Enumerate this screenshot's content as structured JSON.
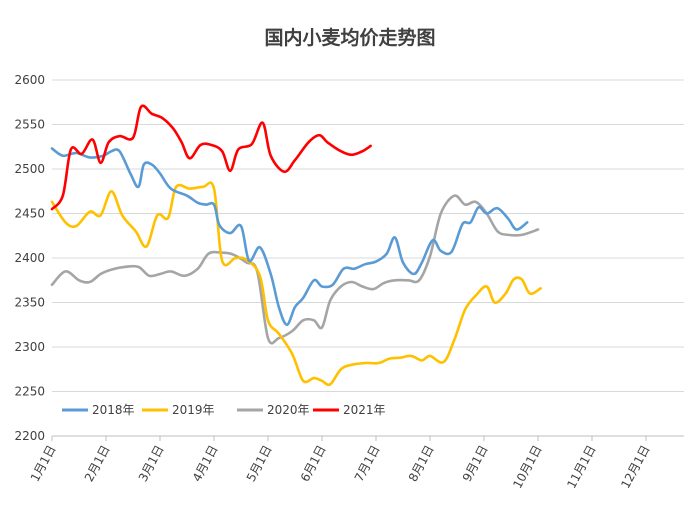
{
  "chart_data": {
    "type": "line",
    "title": "国内小麦均价走势图",
    "xlabel": "",
    "ylabel": "",
    "ylim": [
      2200,
      2600
    ],
    "yticks": [
      2200,
      2250,
      2300,
      2350,
      2400,
      2450,
      2500,
      2550,
      2600
    ],
    "x_range": [
      0,
      12
    ],
    "x_ticks": [
      {
        "label": "1月1日",
        "x": 0
      },
      {
        "label": "2月1日",
        "x": 1
      },
      {
        "label": "3月1日",
        "x": 2
      },
      {
        "label": "4月1日",
        "x": 3
      },
      {
        "label": "5月1日",
        "x": 4
      },
      {
        "label": "6月1日",
        "x": 5
      },
      {
        "label": "7月1日",
        "x": 6
      },
      {
        "label": "8月1日",
        "x": 7
      },
      {
        "label": "9月1日",
        "x": 8
      },
      {
        "label": "10月1日",
        "x": 9
      },
      {
        "label": "11月1日",
        "x": 10
      },
      {
        "label": "12月1日",
        "x": 11
      }
    ],
    "grid": "horizontal",
    "legend_position": "bottom-left",
    "series": [
      {
        "name": "2018年",
        "color": "#5b9bd5",
        "points": [
          [
            0,
            2523
          ],
          [
            0.2,
            2515
          ],
          [
            0.45,
            2518
          ],
          [
            0.7,
            2513
          ],
          [
            0.95,
            2515
          ],
          [
            1.1,
            2520
          ],
          [
            1.25,
            2520
          ],
          [
            1.45,
            2495
          ],
          [
            1.6,
            2480
          ],
          [
            1.7,
            2505
          ],
          [
            1.85,
            2505
          ],
          [
            2.0,
            2495
          ],
          [
            2.2,
            2478
          ],
          [
            2.5,
            2470
          ],
          [
            2.7,
            2462
          ],
          [
            2.85,
            2460
          ],
          [
            3.0,
            2460
          ],
          [
            3.1,
            2437
          ],
          [
            3.3,
            2428
          ],
          [
            3.5,
            2436
          ],
          [
            3.65,
            2397
          ],
          [
            3.85,
            2412
          ],
          [
            4.05,
            2382
          ],
          [
            4.2,
            2345
          ],
          [
            4.35,
            2325
          ],
          [
            4.5,
            2345
          ],
          [
            4.65,
            2355
          ],
          [
            4.85,
            2375
          ],
          [
            5.0,
            2368
          ],
          [
            5.2,
            2370
          ],
          [
            5.4,
            2388
          ],
          [
            5.6,
            2388
          ],
          [
            5.8,
            2393
          ],
          [
            6.0,
            2396
          ],
          [
            6.2,
            2405
          ],
          [
            6.35,
            2423
          ],
          [
            6.5,
            2395
          ],
          [
            6.7,
            2382
          ],
          [
            6.85,
            2395
          ],
          [
            7.05,
            2420
          ],
          [
            7.2,
            2408
          ],
          [
            7.4,
            2407
          ],
          [
            7.6,
            2438
          ],
          [
            7.75,
            2440
          ],
          [
            7.9,
            2457
          ],
          [
            8.05,
            2450
          ],
          [
            8.25,
            2456
          ],
          [
            8.45,
            2444
          ],
          [
            8.6,
            2432
          ],
          [
            8.8,
            2440
          ]
        ]
      },
      {
        "name": "2019年",
        "color": "#ffc000",
        "points": [
          [
            0,
            2463
          ],
          [
            0.25,
            2440
          ],
          [
            0.45,
            2436
          ],
          [
            0.7,
            2452
          ],
          [
            0.9,
            2448
          ],
          [
            1.1,
            2475
          ],
          [
            1.3,
            2448
          ],
          [
            1.55,
            2430
          ],
          [
            1.75,
            2413
          ],
          [
            1.95,
            2448
          ],
          [
            2.15,
            2445
          ],
          [
            2.3,
            2480
          ],
          [
            2.55,
            2478
          ],
          [
            2.8,
            2480
          ],
          [
            3.0,
            2478
          ],
          [
            3.15,
            2397
          ],
          [
            3.4,
            2400
          ],
          [
            3.6,
            2398
          ],
          [
            3.85,
            2380
          ],
          [
            4.0,
            2330
          ],
          [
            4.2,
            2315
          ],
          [
            4.45,
            2292
          ],
          [
            4.65,
            2262
          ],
          [
            4.85,
            2265
          ],
          [
            5.0,
            2262
          ],
          [
            5.15,
            2258
          ],
          [
            5.35,
            2275
          ],
          [
            5.55,
            2280
          ],
          [
            5.8,
            2282
          ],
          [
            6.05,
            2282
          ],
          [
            6.25,
            2287
          ],
          [
            6.45,
            2288
          ],
          [
            6.65,
            2290
          ],
          [
            6.85,
            2285
          ],
          [
            7.0,
            2290
          ],
          [
            7.25,
            2283
          ],
          [
            7.45,
            2308
          ],
          [
            7.65,
            2342
          ],
          [
            7.85,
            2358
          ],
          [
            8.05,
            2368
          ],
          [
            8.2,
            2350
          ],
          [
            8.4,
            2360
          ],
          [
            8.55,
            2376
          ],
          [
            8.7,
            2376
          ],
          [
            8.85,
            2360
          ],
          [
            9.05,
            2366
          ]
        ]
      },
      {
        "name": "2020年",
        "color": "#a5a5a5",
        "points": [
          [
            0,
            2370
          ],
          [
            0.25,
            2385
          ],
          [
            0.5,
            2375
          ],
          [
            0.7,
            2373
          ],
          [
            0.9,
            2382
          ],
          [
            1.1,
            2387
          ],
          [
            1.35,
            2390
          ],
          [
            1.6,
            2390
          ],
          [
            1.8,
            2380
          ],
          [
            2.0,
            2382
          ],
          [
            2.2,
            2385
          ],
          [
            2.45,
            2380
          ],
          [
            2.7,
            2388
          ],
          [
            2.9,
            2405
          ],
          [
            3.15,
            2406
          ],
          [
            3.35,
            2404
          ],
          [
            3.6,
            2395
          ],
          [
            3.8,
            2385
          ],
          [
            4.0,
            2310
          ],
          [
            4.2,
            2310
          ],
          [
            4.45,
            2318
          ],
          [
            4.65,
            2330
          ],
          [
            4.85,
            2330
          ],
          [
            5.0,
            2322
          ],
          [
            5.15,
            2352
          ],
          [
            5.35,
            2368
          ],
          [
            5.55,
            2373
          ],
          [
            5.75,
            2368
          ],
          [
            5.95,
            2365
          ],
          [
            6.15,
            2372
          ],
          [
            6.35,
            2375
          ],
          [
            6.6,
            2375
          ],
          [
            6.8,
            2375
          ],
          [
            7.0,
            2402
          ],
          [
            7.2,
            2450
          ],
          [
            7.45,
            2470
          ],
          [
            7.65,
            2460
          ],
          [
            7.85,
            2463
          ],
          [
            8.05,
            2450
          ],
          [
            8.25,
            2430
          ],
          [
            8.45,
            2426
          ],
          [
            8.7,
            2426
          ],
          [
            9.0,
            2432
          ]
        ]
      },
      {
        "name": "2021年",
        "color": "#ff0000",
        "points": [
          [
            0,
            2455
          ],
          [
            0.2,
            2470
          ],
          [
            0.35,
            2522
          ],
          [
            0.55,
            2517
          ],
          [
            0.75,
            2533
          ],
          [
            0.9,
            2507
          ],
          [
            1.05,
            2530
          ],
          [
            1.25,
            2537
          ],
          [
            1.5,
            2535
          ],
          [
            1.65,
            2570
          ],
          [
            1.85,
            2562
          ],
          [
            2.05,
            2557
          ],
          [
            2.25,
            2545
          ],
          [
            2.4,
            2530
          ],
          [
            2.55,
            2512
          ],
          [
            2.75,
            2527
          ],
          [
            2.95,
            2527
          ],
          [
            3.15,
            2520
          ],
          [
            3.3,
            2498
          ],
          [
            3.45,
            2522
          ],
          [
            3.7,
            2528
          ],
          [
            3.9,
            2552
          ],
          [
            4.05,
            2515
          ],
          [
            4.3,
            2497
          ],
          [
            4.5,
            2510
          ],
          [
            4.75,
            2530
          ],
          [
            4.95,
            2538
          ],
          [
            5.1,
            2530
          ],
          [
            5.35,
            2520
          ],
          [
            5.55,
            2516
          ],
          [
            5.75,
            2520
          ],
          [
            5.9,
            2526
          ]
        ]
      }
    ]
  }
}
